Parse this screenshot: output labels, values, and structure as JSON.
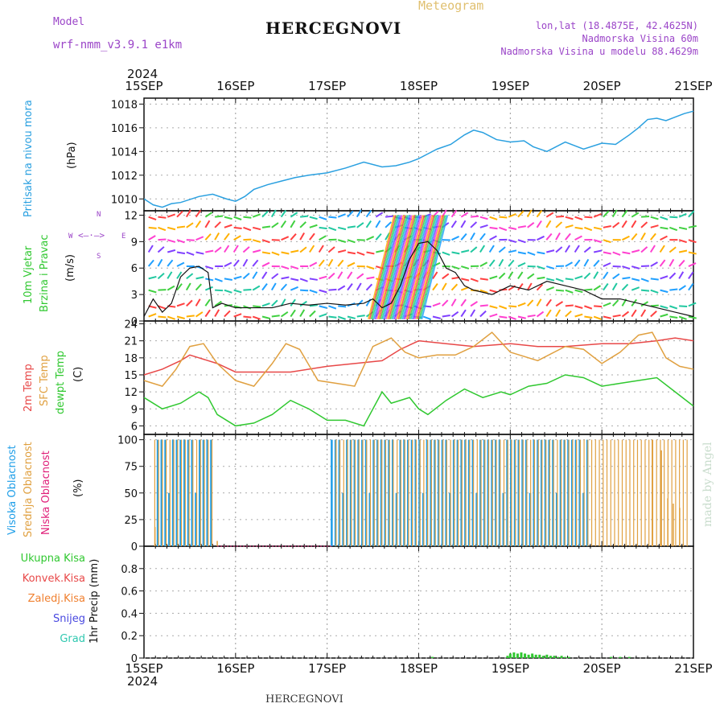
{
  "header": {
    "model_label": "Model",
    "model_name": "wrf-nmm_v3.9.1 e1km",
    "station": "HERCEGNOVI",
    "meteogram_label": "Meteogram",
    "lonlat": "lon,lat (18.4875E, 42.4625N)",
    "elevation": "Nadmorska Visina 60m",
    "model_elevation": "Nadmorska Visina u modelu 88.4629m",
    "year_top": "2024",
    "year_bottom": "2024",
    "footer_station": "HERCEGNOVI",
    "watermark": "made by Angel"
  },
  "axis_labels": {
    "pressure": [
      "Pritisak na nivou mora",
      "(hPa)"
    ],
    "wind": [
      "10m Vjetar",
      "Brzina i Pravac",
      "(m/s)"
    ],
    "compass": [
      "N",
      "E",
      "S",
      "W"
    ],
    "temp": [
      "2m Temp",
      "SFC Temp",
      "dewpt Temp",
      "(C)"
    ],
    "cloud": [
      "Visoka Oblacnost",
      "Srednja Oblacnost",
      "Niska Oblacnost",
      "(%)"
    ],
    "precip_unit": "1hr Precip (mm)",
    "precip_legend": [
      "Ukupna Kisa",
      "Konvek.Kisa",
      "Zaledj.Kisa",
      "Snijeg",
      "Grad"
    ]
  },
  "colors": {
    "pressure": "#2aa0e0",
    "temp2m": "#e84848",
    "sfctemp": "#e0a040",
    "dewpt": "#30c830",
    "cloud_high": "#1e9ee8",
    "cloud_mid": "#e0a040",
    "cloud_low": "#e0207a",
    "total_rain": "#30c830",
    "conv_rain": "#e84848",
    "frz_rain": "#f08030",
    "snow": "#4848e0",
    "hail": "#30c8b0",
    "header_purple": "#9b45c8",
    "meteogram_gold": "#e0c070"
  },
  "chart_data": [
    {
      "type": "line",
      "name": "pressure",
      "x_ticks": [
        "15SEP",
        "16SEP",
        "17SEP",
        "18SEP",
        "19SEP",
        "20SEP",
        "21SEP"
      ],
      "x_days": [
        0,
        6
      ],
      "ylim": [
        1009,
        1018.5
      ],
      "y_ticks": [
        1010,
        1012,
        1014,
        1016,
        1018
      ],
      "grid": true,
      "series": [
        {
          "x": [
            0,
            0.1,
            0.2,
            0.3,
            0.4,
            0.6,
            0.75,
            0.9,
            1.0,
            1.1,
            1.2,
            1.35,
            1.5,
            1.65,
            1.8,
            2.0,
            2.2,
            2.4,
            2.6,
            2.75,
            2.9,
            3.0,
            3.1,
            3.2,
            3.35,
            3.5,
            3.6,
            3.7,
            3.85,
            4.0,
            4.15,
            4.25,
            4.4,
            4.6,
            4.8,
            5.0,
            5.15,
            5.3,
            5.4,
            5.5,
            5.6,
            5.7,
            5.8,
            5.9,
            6.0
          ],
          "values": [
            1010.0,
            1009.5,
            1009.3,
            1009.6,
            1009.7,
            1010.2,
            1010.4,
            1010.0,
            1009.8,
            1010.2,
            1010.8,
            1011.2,
            1011.5,
            1011.8,
            1012.0,
            1012.2,
            1012.6,
            1013.1,
            1012.7,
            1012.8,
            1013.1,
            1013.4,
            1013.8,
            1014.2,
            1014.6,
            1015.4,
            1015.8,
            1015.6,
            1015.0,
            1014.8,
            1014.9,
            1014.4,
            1014.0,
            1014.8,
            1014.2,
            1014.7,
            1014.6,
            1015.4,
            1016.0,
            1016.7,
            1016.8,
            1016.6,
            1016.9,
            1017.2,
            1017.4
          ]
        }
      ]
    },
    {
      "type": "line",
      "name": "wind",
      "ylim": [
        0,
        12.5
      ],
      "y_ticks": [
        0,
        3,
        6,
        9,
        12
      ],
      "grid": true,
      "series": [
        {
          "name": "speed",
          "x": [
            0,
            0.1,
            0.2,
            0.3,
            0.4,
            0.5,
            0.6,
            0.7,
            0.75,
            0.85,
            1.0,
            1.2,
            1.4,
            1.6,
            1.8,
            2.0,
            2.2,
            2.4,
            2.5,
            2.6,
            2.7,
            2.8,
            2.9,
            3.0,
            3.1,
            3.2,
            3.3,
            3.4,
            3.5,
            3.6,
            3.8,
            4.0,
            4.2,
            4.4,
            4.6,
            4.8,
            5.0,
            5.2,
            5.4,
            5.6,
            5.8,
            6.0
          ],
          "values": [
            0.5,
            2.5,
            1.0,
            2.0,
            5.0,
            6.0,
            6.2,
            5.5,
            1.5,
            2.0,
            1.5,
            1.5,
            1.5,
            2.0,
            1.8,
            2.0,
            1.8,
            2.0,
            2.5,
            1.5,
            2.0,
            4.0,
            7.0,
            8.8,
            9.0,
            8.0,
            6.0,
            5.5,
            4.0,
            3.5,
            3.0,
            4.0,
            3.5,
            4.5,
            4.0,
            3.5,
            2.5,
            2.5,
            2.0,
            1.5,
            1.0,
            0.5
          ]
        }
      ]
    },
    {
      "type": "line",
      "name": "temperature",
      "ylim": [
        4.5,
        24.5
      ],
      "y_ticks": [
        6,
        9,
        12,
        15,
        18,
        21,
        24
      ],
      "grid": true,
      "series": [
        {
          "name": "2m Temp",
          "x": [
            0,
            0.2,
            0.4,
            0.5,
            0.6,
            0.8,
            1.0,
            1.3,
            1.6,
            2.0,
            2.3,
            2.6,
            2.8,
            3.0,
            3.3,
            3.6,
            4.0,
            4.3,
            4.6,
            5.0,
            5.3,
            5.6,
            5.8,
            6.0
          ],
          "values": [
            15,
            16,
            17.5,
            18.5,
            18.0,
            17.0,
            15.5,
            15.5,
            15.5,
            16.5,
            17.0,
            17.5,
            19.5,
            21.0,
            20.5,
            20.0,
            20.5,
            20.0,
            20.0,
            20.5,
            20.5,
            21.0,
            21.5,
            21.0
          ]
        },
        {
          "name": "SFC Temp",
          "x": [
            0,
            0.2,
            0.35,
            0.5,
            0.65,
            0.8,
            1.0,
            1.2,
            1.4,
            1.55,
            1.7,
            1.9,
            2.1,
            2.3,
            2.5,
            2.7,
            2.85,
            3.0,
            3.2,
            3.4,
            3.6,
            3.8,
            4.0,
            4.3,
            4.6,
            4.8,
            5.0,
            5.2,
            5.4,
            5.55,
            5.7,
            5.85,
            6.0
          ],
          "values": [
            14,
            13,
            16,
            20,
            20.5,
            17.0,
            14.0,
            13.0,
            17.0,
            20.5,
            19.5,
            14.0,
            13.5,
            13.0,
            20.0,
            21.5,
            19.0,
            18.0,
            18.5,
            18.5,
            20.0,
            22.5,
            19.0,
            17.5,
            20.0,
            19.5,
            17.0,
            19.0,
            22.0,
            22.5,
            18.0,
            16.5,
            16.0
          ]
        },
        {
          "name": "dewpt Temp",
          "x": [
            0,
            0.2,
            0.4,
            0.6,
            0.7,
            0.8,
            1.0,
            1.2,
            1.4,
            1.6,
            1.8,
            2.0,
            2.2,
            2.4,
            2.6,
            2.7,
            2.9,
            3.0,
            3.1,
            3.3,
            3.5,
            3.7,
            3.9,
            4.0,
            4.2,
            4.4,
            4.6,
            4.8,
            5.0,
            5.2,
            5.4,
            5.6,
            5.8,
            6.0
          ],
          "values": [
            11,
            9,
            10,
            12,
            11,
            8,
            6,
            6.5,
            8,
            10.5,
            9,
            7,
            7,
            6,
            12,
            10,
            11,
            9,
            8,
            10.5,
            12.5,
            11,
            12,
            11.5,
            13,
            13.5,
            15,
            14.5,
            13,
            13.5,
            14,
            14.5,
            12,
            9.5
          ]
        }
      ]
    },
    {
      "type": "bar",
      "name": "cloud_cover",
      "ylim": [
        0,
        105
      ],
      "y_ticks": [
        0,
        25,
        50,
        75,
        100
      ],
      "grid": true,
      "series": [
        {
          "name": "Visoka Oblacnost",
          "segments": [
            {
              "from": 0.15,
              "to": 0.72,
              "value": 100
            },
            {
              "from": 2.05,
              "to": 4.85,
              "value": 100
            }
          ]
        },
        {
          "name": "Srednja Oblacnost",
          "segments": [
            {
              "from": 0.1,
              "to": 0.72,
              "value": 100
            },
            {
              "from": 2.08,
              "to": 5.9,
              "value": 100
            }
          ],
          "scattered": [
            {
              "x": 0.12,
              "value": 18
            },
            {
              "x": 0.8,
              "value": 5
            },
            {
              "x": 5.55,
              "value": 100
            },
            {
              "x": 5.65,
              "value": 90
            },
            {
              "x": 5.72,
              "value": 45
            },
            {
              "x": 5.78,
              "value": 40
            },
            {
              "x": 5.85,
              "value": 36
            }
          ]
        },
        {
          "name": "Niska Oblacnost",
          "segments": []
        }
      ]
    },
    {
      "type": "bar",
      "name": "precip",
      "ylim": [
        0,
        1.0
      ],
      "y_ticks": [
        0,
        0.2,
        0.4,
        0.6,
        0.8
      ],
      "grid": true,
      "series": [
        {
          "name": "Ukupna Kisa",
          "x": [
            3.15,
            3.97,
            4.0,
            4.04,
            4.08,
            4.12,
            4.16,
            4.2,
            4.24,
            4.28,
            4.32,
            4.36,
            4.4,
            4.44,
            4.48,
            4.52,
            4.56,
            4.6,
            4.64,
            5.1,
            5.2,
            5.3
          ],
          "values": [
            0.01,
            0.02,
            0.04,
            0.05,
            0.04,
            0.05,
            0.04,
            0.03,
            0.04,
            0.03,
            0.03,
            0.02,
            0.03,
            0.02,
            0.02,
            0.01,
            0.02,
            0.01,
            0.01,
            0.01,
            0.01,
            0.01
          ]
        }
      ]
    }
  ]
}
